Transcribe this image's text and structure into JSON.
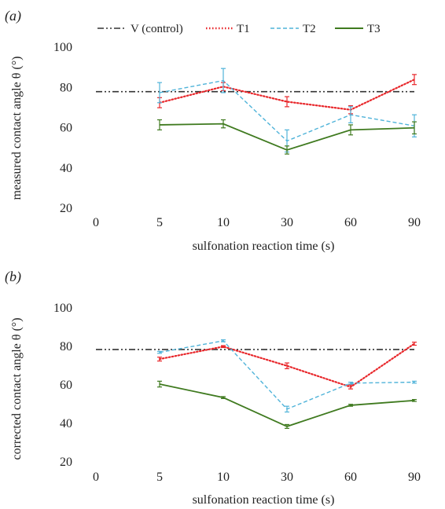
{
  "chart_data": [
    {
      "type": "line",
      "panel_label": "(a)",
      "xlabel": "sulfonation reaction time (s)",
      "ylabel": "measured contact angle θ (°)",
      "categories": [
        "0",
        "5",
        "10",
        "30",
        "60",
        "90"
      ],
      "ylim": [
        20,
        100
      ],
      "yticks": [
        "20",
        "40",
        "60",
        "80",
        "100"
      ],
      "legend_position": "top",
      "control": {
        "name": "V (control)",
        "value": 77.5,
        "color": "#333333"
      },
      "series": [
        {
          "name": "T1",
          "color": "#e8262a",
          "style": "dotted",
          "values": [
            null,
            72,
            80,
            72.5,
            68.5,
            83.5
          ],
          "errors": [
            null,
            2.5,
            2,
            2.5,
            2,
            2.5
          ]
        },
        {
          "name": "T2",
          "color": "#4fb3d9",
          "style": "dashed",
          "values": [
            null,
            77,
            83,
            53,
            66,
            60.5
          ],
          "errors": [
            null,
            5,
            6,
            5.5,
            4,
            5.5
          ]
        },
        {
          "name": "T3",
          "color": "#3f7a1f",
          "style": "solid",
          "values": [
            null,
            61,
            61.5,
            48.5,
            58.5,
            59.5
          ],
          "errors": [
            null,
            2.5,
            2,
            2,
            2.5,
            3
          ]
        }
      ]
    },
    {
      "type": "line",
      "panel_label": "(b)",
      "xlabel": "sulfonation reaction time (s)",
      "ylabel": "corrected contact angle θ (°)",
      "categories": [
        "0",
        "5",
        "10",
        "30",
        "60",
        "90"
      ],
      "ylim": [
        20,
        100
      ],
      "yticks": [
        "20",
        "40",
        "60",
        "80",
        "100"
      ],
      "control": {
        "name": "V (control)",
        "value": 78,
        "color": "#333333"
      },
      "series": [
        {
          "name": "T1",
          "color": "#e8262a",
          "style": "dotted",
          "values": [
            null,
            73,
            79.5,
            69.5,
            58.5,
            81
          ],
          "errors": [
            null,
            1,
            0.5,
            1.5,
            1,
            0.8
          ]
        },
        {
          "name": "T2",
          "color": "#4fb3d9",
          "style": "dashed",
          "values": [
            null,
            76.5,
            82.5,
            47,
            60.5,
            61
          ],
          "errors": [
            null,
            0.5,
            0.5,
            1.5,
            0.5,
            0.5
          ]
        },
        {
          "name": "T3",
          "color": "#3f7a1f",
          "style": "solid",
          "values": [
            null,
            60,
            53,
            38,
            49,
            51.5
          ],
          "errors": [
            null,
            1.5,
            0.5,
            1,
            0.5,
            0.5
          ]
        }
      ]
    }
  ]
}
